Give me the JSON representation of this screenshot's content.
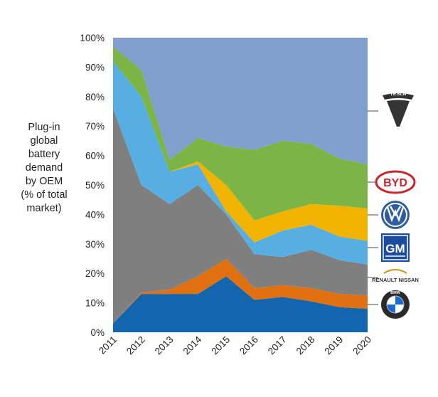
{
  "chart_data": {
    "type": "area",
    "stacked": true,
    "percent": true,
    "ylabel_lines": [
      "Plug-in",
      "global",
      "battery",
      "demand",
      "by OEM",
      "(% of total",
      "market)"
    ],
    "x": [
      "2011",
      "2012",
      "2013",
      "2014",
      "2015",
      "2016",
      "2017",
      "2018",
      "2019",
      "2020"
    ],
    "ylim": [
      0,
      100
    ],
    "yticks": [
      "0%",
      "10%",
      "20%",
      "30%",
      "40%",
      "50%",
      "60%",
      "70%",
      "80%",
      "90%",
      "100%"
    ],
    "grid": false,
    "legend": "logos-right",
    "series": [
      {
        "logo": "bmw-logo",
        "color": "#1266ae",
        "values": [
          3,
          13,
          13,
          13,
          19,
          11,
          12,
          10.5,
          8.5,
          8
        ]
      },
      {
        "logo": "renault-nissan-logo",
        "color": "#e07010",
        "values": [
          0,
          0.5,
          1.5,
          6,
          6,
          4,
          4,
          4.5,
          4.5,
          4.5
        ]
      },
      {
        "logo": "gm-logo",
        "color": "#7f7f7f",
        "values": [
          73,
          36.5,
          29,
          31,
          15,
          11.5,
          9.5,
          13,
          11.5,
          10.5
        ]
      },
      {
        "logo": "vw-logo",
        "color": "#57aee2",
        "values": [
          16,
          30,
          11,
          7,
          1,
          4,
          9,
          8.5,
          8,
          8
        ]
      },
      {
        "logo": "byd-logo",
        "color": "#f0b400",
        "values": [
          0,
          0,
          0,
          1,
          9,
          7.5,
          6.5,
          7,
          10.5,
          11
        ]
      },
      {
        "logo": "byd-logo-green",
        "color": "#7cb546",
        "values": [
          5,
          9,
          4,
          8,
          13,
          24,
          24,
          20.5,
          16,
          15
        ]
      },
      {
        "logo": "tesla-logo",
        "color": "#7f9fcc",
        "values": [
          3,
          11,
          41.5,
          34,
          37,
          38,
          35,
          36,
          41,
          43
        ]
      }
    ]
  },
  "logos": {
    "tesla": "TESLA",
    "byd": "BYD",
    "gm": "GM",
    "renault_nissan": "RENAULT NISSAN",
    "bmw": "BMW"
  }
}
